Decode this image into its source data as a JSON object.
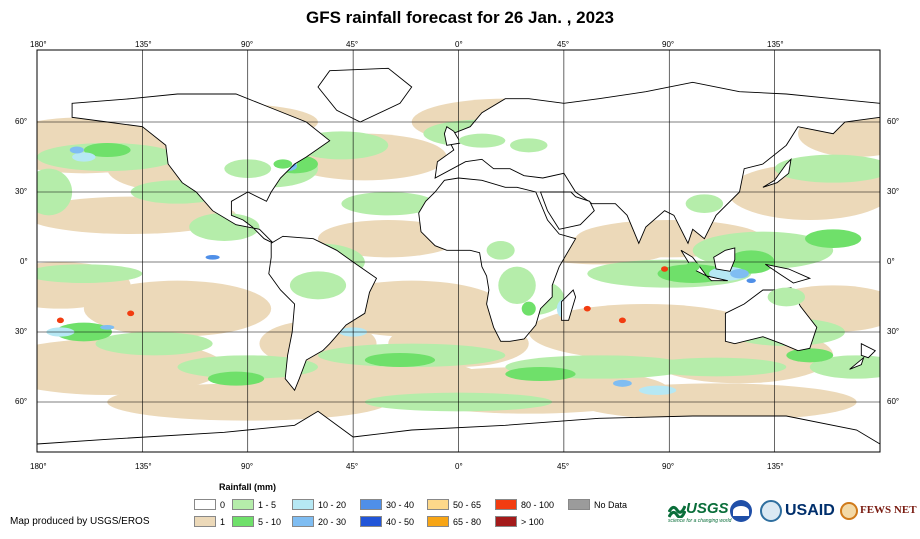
{
  "title": "GFS rainfall forecast for 26 Jan. , 2023",
  "map": {
    "lon_labels": [
      "180°",
      "135°",
      "90°",
      "45°",
      "0°",
      "45°",
      "90°",
      "135°"
    ],
    "lat_labels": [
      "60°",
      "30°",
      "0°",
      "30°",
      "60°"
    ]
  },
  "legend": {
    "title": "Rainfall (mm)",
    "items": [
      {
        "label": "0",
        "color": "#ffffff"
      },
      {
        "label": "1",
        "color": "#ecd9b9"
      },
      {
        "label": "1 - 5",
        "color": "#b5edaa"
      },
      {
        "label": "5 - 10",
        "color": "#6fe06a"
      },
      {
        "label": "10 - 20",
        "color": "#b6e8f4"
      },
      {
        "label": "20 - 30",
        "color": "#7fbdf2"
      },
      {
        "label": "30 - 40",
        "color": "#4f8fe8"
      },
      {
        "label": "40 - 50",
        "color": "#2155d8"
      },
      {
        "label": "50 - 65",
        "color": "#fdd88a"
      },
      {
        "label": "65 - 80",
        "color": "#f7a515"
      },
      {
        "label": "80 - 100",
        "color": "#f23c10"
      },
      {
        "label": "> 100",
        "color": "#a41a1a"
      },
      {
        "label": "No Data",
        "color": "#9b9b9b"
      }
    ]
  },
  "credit": "Map produced by USGS/EROS",
  "logos": {
    "usgs": "USGS",
    "usgs_tagline": "science for a changing world",
    "usaid": "USAID",
    "fewsnet": "FEWS NET"
  }
}
